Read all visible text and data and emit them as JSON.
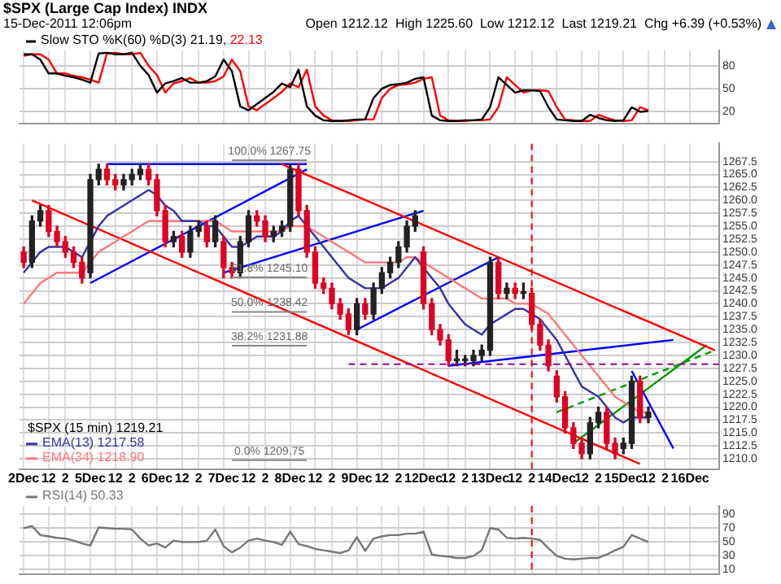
{
  "chart_data": [
    {
      "type": "line",
      "title": "$SPX (Large Cap Index) INDX",
      "subtitle": "15-Dec-2011 12:06pm",
      "annotations": [
        "Open 1212.12  High 1225.60  Low 1212.12  Last 1219.21  Chg +6.39 (+0.53%)"
      ],
      "legend": "top left",
      "legend_title": "Slow STO %K(60) %D(3)",
      "tick_labels": "y",
      "grid": true,
      "ylim": [
        5,
        100
      ],
      "yticks": [
        20,
        50,
        80
      ],
      "series": [
        {
          "name": "21.19,",
          "color": "#000000",
          "values": [
            95,
            95,
            88,
            70,
            70,
            67,
            65,
            62,
            58,
            96,
            97,
            95,
            95,
            97,
            80,
            68,
            45,
            57,
            60,
            64,
            58,
            58,
            60,
            66,
            88,
            73,
            27,
            22,
            30,
            38,
            46,
            57,
            52,
            75,
            27,
            15,
            9,
            8,
            8,
            9,
            10,
            10,
            38,
            50,
            55,
            56,
            58,
            63,
            65,
            15,
            9,
            8,
            8,
            9,
            9,
            10,
            26,
            65,
            55,
            45,
            48,
            48,
            47,
            26,
            10,
            9,
            8,
            8,
            16,
            12,
            9,
            8,
            9,
            26,
            20,
            21,
            null,
            null,
            null,
            null,
            null,
            null,
            null,
            null
          ]
        },
        {
          "name": "22.13",
          "color": "#ff0000",
          "values": [
            93,
            95,
            95,
            88,
            70,
            70,
            67,
            65,
            62,
            58,
            96,
            97,
            95,
            95,
            97,
            80,
            68,
            45,
            57,
            60,
            64,
            58,
            58,
            60,
            66,
            88,
            73,
            27,
            22,
            30,
            38,
            46,
            57,
            52,
            75,
            27,
            15,
            9,
            8,
            8,
            9,
            10,
            10,
            38,
            50,
            55,
            56,
            58,
            63,
            65,
            15,
            9,
            8,
            8,
            9,
            9,
            10,
            26,
            65,
            55,
            45,
            48,
            48,
            47,
            26,
            10,
            9,
            8,
            8,
            16,
            12,
            9,
            8,
            9,
            26,
            22,
            null,
            null,
            null,
            null,
            null,
            null,
            null,
            null
          ]
        }
      ]
    },
    {
      "type": "candlestick",
      "title": "$SPX (15 min) 1219.21",
      "categories": [
        "2Dec",
        null,
        null,
        "12",
        null,
        "2",
        null,
        null,
        "5Dec",
        null,
        null,
        "12",
        null,
        "2",
        null,
        null,
        "6Dec",
        null,
        null,
        "12",
        null,
        "2",
        null,
        null,
        "7Dec",
        null,
        null,
        "12",
        null,
        "2",
        null,
        null,
        "8Dec",
        null,
        null,
        "12",
        null,
        "2",
        null,
        null,
        "9Dec",
        null,
        null,
        "12",
        null,
        "2",
        null,
        null,
        "12Dec",
        null,
        null,
        "12",
        null,
        "2",
        null,
        null,
        "13Dec",
        null,
        null,
        "12",
        null,
        "2",
        null,
        null,
        "14Dec",
        null,
        null,
        "12",
        null,
        "2",
        null,
        null,
        "15Dec",
        null,
        null,
        "12",
        null,
        "2",
        null,
        null,
        "16Dec",
        null,
        null,
        null
      ],
      "legend": "bottom left",
      "grid": true,
      "ylim": [
        1208,
        1271
      ],
      "yticks": [
        {
          "value": 1210,
          "label": "1210.0"
        },
        {
          "value": 1212.5,
          "label": "1212.5"
        },
        {
          "value": 1215,
          "label": "1215.0"
        },
        {
          "value": 1217.5,
          "label": "1217.5"
        },
        {
          "value": 1220,
          "label": "1220.0"
        },
        {
          "value": 1222.5,
          "label": "1222.5"
        },
        {
          "value": 1225,
          "label": "1225.0"
        },
        {
          "value": 1227.5,
          "label": "1227.5"
        },
        {
          "value": 1230,
          "label": "1230.0"
        },
        {
          "value": 1232.5,
          "label": "1232.5"
        },
        {
          "value": 1235,
          "label": "1235.0"
        },
        {
          "value": 1237.5,
          "label": "1237.5"
        },
        {
          "value": 1240,
          "label": "1240.0"
        },
        {
          "value": 1242.5,
          "label": "1242.5"
        },
        {
          "value": 1245,
          "label": "1245.0"
        },
        {
          "value": 1247.5,
          "label": "1247.5"
        },
        {
          "value": 1250,
          "label": "1250.0"
        },
        {
          "value": 1252.5,
          "label": "1252.5"
        },
        {
          "value": 1255,
          "label": "1255.0"
        },
        {
          "value": 1257.5,
          "label": "1257.5"
        },
        {
          "value": 1260,
          "label": "1260.0"
        },
        {
          "value": 1262.5,
          "label": "1262.5"
        },
        {
          "value": 1265,
          "label": "1265.0"
        },
        {
          "value": 1267.5,
          "label": "1267.5"
        }
      ],
      "ohlc": [
        [
          1250,
          1251,
          1247,
          1248
        ],
        [
          1248,
          1257,
          1247,
          1256
        ],
        [
          1256,
          1259,
          1255,
          1258
        ],
        [
          1258,
          1259,
          1253,
          1254
        ],
        [
          1254,
          1255,
          1251,
          1252
        ],
        [
          1252,
          1253,
          1249,
          1250
        ],
        [
          1250,
          1251,
          1247,
          1248
        ],
        [
          1248,
          1249,
          1244,
          1245
        ],
        [
          1246,
          1265,
          1245,
          1264
        ],
        [
          1264,
          1267,
          1263,
          1266
        ],
        [
          1266,
          1267,
          1263,
          1264
        ],
        [
          1264,
          1265,
          1262,
          1263
        ],
        [
          1263,
          1265,
          1262,
          1264
        ],
        [
          1264,
          1266,
          1263,
          1265
        ],
        [
          1265,
          1267,
          1264,
          1266
        ],
        [
          1266,
          1267,
          1263,
          1264
        ],
        [
          1264,
          1265,
          1257,
          1258
        ],
        [
          1258,
          1259,
          1251,
          1252
        ],
        [
          1252,
          1254,
          1251,
          1253
        ],
        [
          1253,
          1254,
          1249,
          1250
        ],
        [
          1250,
          1255,
          1249,
          1254
        ],
        [
          1254,
          1256,
          1253,
          1255
        ],
        [
          1255,
          1256,
          1251,
          1252
        ],
        [
          1252,
          1257,
          1251,
          1256
        ],
        [
          1252,
          1253,
          1245,
          1247
        ],
        [
          1247,
          1248,
          1245,
          1246
        ],
        [
          1246,
          1253,
          1245,
          1252
        ],
        [
          1252,
          1258,
          1251,
          1257
        ],
        [
          1257,
          1258,
          1255,
          1256
        ],
        [
          1256,
          1257,
          1252,
          1253
        ],
        [
          1253,
          1255,
          1252,
          1254
        ],
        [
          1254,
          1256,
          1253,
          1255
        ],
        [
          1255,
          1267,
          1254,
          1266
        ],
        [
          1266,
          1267,
          1257,
          1258
        ],
        [
          1258,
          1259,
          1249,
          1250
        ],
        [
          1250,
          1251,
          1243,
          1244
        ],
        [
          1244,
          1245,
          1242,
          1243
        ],
        [
          1243,
          1244,
          1239,
          1240
        ],
        [
          1240,
          1241,
          1237,
          1238
        ],
        [
          1238,
          1239,
          1234,
          1235
        ],
        [
          1235,
          1241,
          1234,
          1240
        ],
        [
          1240,
          1241,
          1237,
          1238
        ],
        [
          1238,
          1244,
          1237,
          1243
        ],
        [
          1243,
          1247,
          1242,
          1246
        ],
        [
          1246,
          1249,
          1245,
          1248
        ],
        [
          1248,
          1252,
          1247,
          1251
        ],
        [
          1251,
          1256,
          1250,
          1255
        ],
        [
          1255,
          1258,
          1254,
          1257
        ],
        [
          1250,
          1251,
          1239,
          1240
        ],
        [
          1240,
          1241,
          1234,
          1235
        ],
        [
          1235,
          1236,
          1232,
          1233
        ],
        [
          1233,
          1234,
          1228,
          1229
        ],
        [
          1229,
          1231,
          1228,
          1229
        ],
        [
          1229,
          1230,
          1228,
          1229
        ],
        [
          1229,
          1231,
          1228,
          1230
        ],
        [
          1230,
          1232,
          1229,
          1231
        ],
        [
          1231,
          1249,
          1230,
          1248
        ],
        [
          1248,
          1249,
          1241,
          1242
        ],
        [
          1242,
          1244,
          1241,
          1243
        ],
        [
          1243,
          1244,
          1241,
          1242
        ],
        [
          1242,
          1244,
          1241,
          1242
        ],
        [
          1242,
          1243,
          1235,
          1236
        ],
        [
          1236,
          1237,
          1231,
          1232
        ],
        [
          1232,
          1233,
          1227,
          1228
        ],
        [
          1226,
          1227,
          1221,
          1222
        ],
        [
          1222,
          1223,
          1215,
          1216
        ],
        [
          1216,
          1217,
          1212,
          1213
        ],
        [
          1213,
          1214,
          1210,
          1211
        ],
        [
          1211,
          1218,
          1210,
          1217
        ],
        [
          1217,
          1220,
          1216,
          1219
        ],
        [
          1219,
          1220,
          1212,
          1213
        ],
        [
          1213,
          1214,
          1210,
          1211
        ],
        [
          1212,
          1214,
          1211,
          1213
        ],
        [
          1213,
          1226,
          1212,
          1225
        ],
        [
          1225,
          1226,
          1217,
          1218
        ],
        [
          1218,
          1220,
          1217,
          1219
        ],
        null,
        null,
        null,
        null,
        null,
        null,
        null,
        null
      ],
      "series": [
        {
          "name": "EMA(13) 1217.58",
          "color": "#3333aa",
          "type": "line",
          "values": [
            1246,
            1248,
            1250,
            1251,
            1251,
            1251,
            1250,
            1249,
            1252,
            1255,
            1257,
            1258,
            1259,
            1260,
            1261,
            1262,
            1261,
            1259,
            1258,
            1256,
            1256,
            1256,
            1255,
            1255,
            1253,
            1251,
            1251,
            1252,
            1253,
            1253,
            1253,
            1254,
            1256,
            1257,
            1255,
            1253,
            1251,
            1249,
            1247,
            1245,
            1244,
            1243,
            1243,
            1243,
            1244,
            1245,
            1247,
            1249,
            1247,
            1245,
            1243,
            1240,
            1238,
            1236,
            1235,
            1234,
            1236,
            1237,
            1238,
            1239,
            1239,
            1238,
            1237,
            1235,
            1233,
            1230,
            1227,
            1224,
            1223,
            1222,
            1220,
            1218,
            1217,
            1218,
            1218,
            1218,
            null,
            null,
            null,
            null,
            null,
            null,
            null,
            null
          ]
        },
        {
          "name": "EMA(34) 1218.90",
          "color": "#ff7777",
          "type": "line",
          "values": [
            1240,
            1242,
            1244,
            1245,
            1246,
            1246,
            1246,
            1246,
            1248,
            1250,
            1251,
            1252,
            1253,
            1254,
            1255,
            1256,
            1256,
            1256,
            1256,
            1256,
            1256,
            1256,
            1256,
            1256,
            1255,
            1254,
            1254,
            1254,
            1254,
            1254,
            1254,
            1254,
            1255,
            1255,
            1255,
            1254,
            1253,
            1252,
            1251,
            1250,
            1249,
            1248,
            1248,
            1248,
            1248,
            1248,
            1249,
            1249,
            1248,
            1247,
            1246,
            1245,
            1244,
            1243,
            1242,
            1241,
            1241,
            1241,
            1241,
            1240,
            1240,
            1240,
            1239,
            1238,
            1236,
            1234,
            1232,
            1230,
            1228,
            1226,
            1224,
            1222,
            1221,
            1220,
            1219,
            1219,
            null,
            null,
            null,
            null,
            null,
            null,
            null,
            null
          ]
        },
        {
          "color": "#ff0000",
          "type": "line",
          "values": [
            null,
            null,
            null,
            null,
            null,
            null,
            null,
            null,
            null,
            null,
            null,
            null,
            null,
            null,
            null,
            null,
            null,
            null,
            null,
            null,
            null,
            null,
            null,
            null,
            null,
            null,
            null,
            null,
            null,
            null,
            null,
            1267,
            null,
            null,
            null,
            null,
            null,
            null,
            null,
            null,
            null,
            null,
            null,
            null,
            null,
            null,
            null,
            null,
            null,
            null,
            null,
            null,
            null,
            null,
            null,
            null,
            null,
            null,
            null,
            null,
            null,
            null,
            null,
            null,
            null,
            null,
            null,
            null,
            null,
            null,
            null,
            null,
            null,
            null,
            null,
            null,
            null,
            null,
            null,
            null,
            null,
            null,
            null,
            1231
          ]
        },
        {
          "color": "#ff0000",
          "type": "line",
          "values": [
            null,
            1260,
            null,
            null,
            null,
            null,
            null,
            null,
            null,
            null,
            null,
            null,
            null,
            null,
            null,
            null,
            null,
            null,
            null,
            null,
            null,
            null,
            null,
            null,
            null,
            null,
            null,
            null,
            null,
            null,
            null,
            null,
            null,
            null,
            null,
            null,
            null,
            null,
            null,
            null,
            null,
            null,
            null,
            null,
            null,
            null,
            null,
            null,
            null,
            null,
            null,
            null,
            null,
            null,
            null,
            null,
            null,
            null,
            null,
            null,
            null,
            null,
            null,
            null,
            null,
            null,
            null,
            null,
            null,
            null,
            null,
            null,
            null,
            null,
            1209,
            null,
            null,
            null,
            null,
            null,
            null,
            null,
            null,
            null
          ]
        },
        {
          "color": "#0000ff",
          "type": "line",
          "values": [
            null,
            null,
            null,
            null,
            null,
            null,
            null,
            null,
            null,
            null,
            1267,
            null,
            null,
            null,
            null,
            null,
            null,
            null,
            null,
            null,
            null,
            null,
            null,
            null,
            null,
            null,
            null,
            null,
            null,
            null,
            null,
            null,
            null,
            null,
            1267,
            null,
            null,
            null,
            null,
            null,
            null,
            null,
            null,
            null,
            null,
            null,
            null,
            null,
            null,
            null,
            null,
            null,
            null,
            null,
            null,
            null,
            null,
            null,
            null,
            null,
            null,
            null,
            null,
            null,
            null,
            null,
            null,
            null,
            null,
            null,
            null,
            null,
            null,
            null,
            null,
            null,
            null,
            null,
            null,
            null,
            null,
            null,
            null,
            null
          ]
        },
        {
          "color": "#0000ff",
          "type": "line",
          "values": [
            null,
            null,
            null,
            null,
            null,
            null,
            null,
            null,
            1244,
            null,
            null,
            null,
            null,
            null,
            null,
            null,
            null,
            null,
            null,
            null,
            null,
            null,
            null,
            null,
            null,
            null,
            null,
            null,
            null,
            null,
            null,
            null,
            null,
            null,
            1266,
            null,
            null,
            null,
            null,
            null,
            null,
            null,
            null,
            null,
            null,
            null,
            null,
            null,
            null,
            null,
            null,
            null,
            null,
            null,
            null,
            null,
            null,
            null,
            null,
            null,
            null,
            null,
            null,
            null,
            null,
            null,
            null,
            null,
            null,
            null,
            null,
            null,
            null,
            null,
            null,
            null,
            null,
            null,
            null,
            null,
            null,
            null,
            null,
            null
          ]
        },
        {
          "color": "#0000ff",
          "type": "line",
          "values": [
            null,
            null,
            null,
            null,
            null,
            null,
            null,
            null,
            null,
            null,
            null,
            null,
            null,
            null,
            null,
            null,
            null,
            null,
            null,
            null,
            null,
            null,
            null,
            null,
            1246,
            null,
            null,
            null,
            null,
            null,
            null,
            null,
            null,
            null,
            null,
            null,
            null,
            null,
            null,
            null,
            null,
            null,
            null,
            null,
            null,
            null,
            null,
            null,
            1258,
            null,
            null,
            null,
            null,
            null,
            null,
            null,
            null,
            null,
            null,
            null,
            null,
            null,
            null,
            null,
            null,
            null,
            null,
            null,
            null,
            null,
            null,
            null,
            null,
            null,
            null,
            null,
            null,
            null,
            null,
            null,
            null,
            null,
            null,
            null
          ]
        },
        {
          "color": "#0000ff",
          "type": "line",
          "values": [
            null,
            null,
            null,
            null,
            null,
            null,
            null,
            null,
            null,
            null,
            null,
            null,
            null,
            null,
            null,
            null,
            null,
            null,
            null,
            null,
            null,
            null,
            null,
            null,
            null,
            null,
            null,
            null,
            null,
            null,
            null,
            null,
            null,
            null,
            null,
            null,
            null,
            null,
            null,
            null,
            1235,
            null,
            null,
            null,
            null,
            null,
            null,
            null,
            null,
            null,
            null,
            null,
            null,
            null,
            null,
            null,
            null,
            1249,
            null,
            null,
            null,
            null,
            null,
            null,
            null,
            null,
            null,
            null,
            null,
            null,
            null,
            null,
            null,
            null,
            null,
            null,
            null,
            null,
            null,
            null,
            null,
            null,
            null,
            null
          ]
        },
        {
          "color": "#0000ff",
          "type": "line",
          "values": [
            null,
            null,
            null,
            null,
            null,
            null,
            null,
            null,
            null,
            null,
            null,
            null,
            null,
            null,
            null,
            null,
            null,
            null,
            null,
            null,
            null,
            null,
            null,
            null,
            null,
            null,
            null,
            null,
            null,
            null,
            null,
            null,
            null,
            null,
            null,
            null,
            null,
            null,
            null,
            null,
            null,
            null,
            null,
            null,
            null,
            null,
            null,
            null,
            null,
            null,
            null,
            1228,
            null,
            null,
            null,
            null,
            null,
            null,
            null,
            null,
            null,
            null,
            null,
            null,
            null,
            null,
            null,
            null,
            null,
            null,
            null,
            null,
            null,
            null,
            null,
            null,
            null,
            null,
            1233,
            null,
            null,
            null,
            null,
            null
          ]
        },
        {
          "color": "#0000ff",
          "type": "line",
          "values": [
            null,
            null,
            null,
            null,
            null,
            null,
            null,
            null,
            null,
            null,
            null,
            null,
            null,
            null,
            null,
            null,
            null,
            null,
            null,
            null,
            null,
            null,
            null,
            null,
            null,
            null,
            null,
            null,
            null,
            null,
            null,
            null,
            null,
            null,
            null,
            null,
            null,
            null,
            null,
            null,
            null,
            null,
            null,
            null,
            null,
            null,
            null,
            null,
            null,
            null,
            null,
            null,
            null,
            null,
            null,
            null,
            null,
            null,
            null,
            null,
            null,
            null,
            null,
            null,
            null,
            null,
            null,
            null,
            null,
            null,
            null,
            null,
            null,
            1227,
            null,
            null,
            null,
            null,
            1212,
            null,
            null,
            null,
            null,
            null
          ]
        },
        {
          "color": "#009900",
          "type": "line",
          "values": [
            null,
            null,
            null,
            null,
            null,
            null,
            null,
            null,
            null,
            null,
            null,
            null,
            null,
            null,
            null,
            null,
            null,
            null,
            null,
            null,
            null,
            null,
            null,
            null,
            null,
            null,
            null,
            null,
            null,
            null,
            null,
            null,
            null,
            null,
            null,
            null,
            null,
            null,
            null,
            null,
            null,
            null,
            null,
            null,
            null,
            null,
            null,
            null,
            null,
            null,
            null,
            null,
            null,
            null,
            null,
            null,
            null,
            null,
            null,
            null,
            null,
            null,
            null,
            null,
            null,
            null,
            1213,
            null,
            null,
            null,
            null,
            null,
            null,
            null,
            null,
            null,
            null,
            null,
            null,
            null,
            null,
            null,
            1232,
            null
          ]
        },
        {
          "color": "#009900",
          "type": "line",
          "line_style": "dashed",
          "values": [
            null,
            null,
            null,
            null,
            null,
            null,
            null,
            null,
            null,
            null,
            null,
            null,
            null,
            null,
            null,
            null,
            null,
            null,
            null,
            null,
            null,
            null,
            null,
            null,
            null,
            null,
            null,
            null,
            null,
            null,
            null,
            null,
            null,
            null,
            null,
            null,
            null,
            null,
            null,
            null,
            null,
            null,
            null,
            null,
            null,
            null,
            null,
            null,
            null,
            null,
            null,
            null,
            null,
            null,
            null,
            null,
            null,
            null,
            null,
            null,
            null,
            null,
            null,
            null,
            1219,
            null,
            null,
            null,
            null,
            null,
            null,
            null,
            null,
            null,
            null,
            null,
            null,
            null,
            null,
            null,
            null,
            null,
            null,
            1231
          ]
        }
      ],
      "ref_lines": [
        {
          "axis": "y",
          "value": 1267.75,
          "label": "100.0% 1267.75",
          "color": "#888888"
        },
        {
          "axis": "y",
          "value": 1245.1,
          "label": "61.8% 1245.10",
          "color": "#888888"
        },
        {
          "axis": "y",
          "value": 1238.42,
          "label": "50.0% 1238.42",
          "color": "#888888"
        },
        {
          "axis": "y",
          "value": 1231.88,
          "label": "38.2% 1231.88",
          "color": "#888888"
        },
        {
          "axis": "y",
          "value": 1209.75,
          "label": "0.0% 1209.75",
          "color": "#888888"
        },
        {
          "axis": "y",
          "value": 1228.3,
          "color": "#990099",
          "line_style": "dashed"
        }
      ]
    },
    {
      "type": "line",
      "legend": "top left",
      "tick_labels": "y",
      "grid": true,
      "ylim": [
        4,
        102
      ],
      "yticks": [
        10,
        30,
        50,
        70,
        90
      ],
      "series": [
        {
          "name": "RSI(14) 50.33",
          "color": "#777777",
          "values": [
            70,
            73,
            60,
            58,
            56,
            55,
            52,
            48,
            45,
            71,
            70,
            69,
            69,
            68,
            55,
            45,
            48,
            42,
            52,
            50,
            50,
            50,
            52,
            68,
            44,
            35,
            42,
            52,
            55,
            52,
            50,
            46,
            65,
            47,
            44,
            40,
            38,
            36,
            34,
            38,
            57,
            37,
            55,
            58,
            60,
            60,
            62,
            62,
            65,
            32,
            30,
            29,
            27,
            27,
            30,
            38,
            70,
            68,
            56,
            55,
            56,
            55,
            53,
            41,
            30,
            26,
            25,
            26,
            27,
            27,
            32,
            38,
            43,
            60,
            55,
            50,
            null,
            null,
            null,
            null,
            null,
            null,
            null,
            null
          ]
        }
      ]
    }
  ]
}
